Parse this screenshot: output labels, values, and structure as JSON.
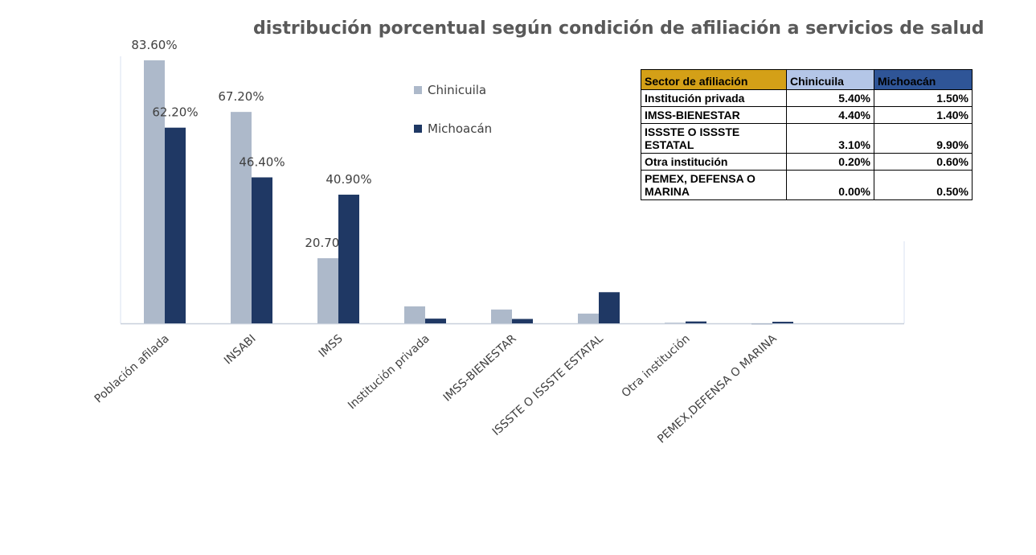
{
  "chart_data": {
    "type": "bar",
    "title": "distribución porcentual según condición de afiliación a servicios de salud",
    "categories": [
      "Población afilada",
      "INSABI",
      "IMSS",
      "Institución privada",
      "IMSS-BIENESTAR",
      "ISSSTE O ISSSTE ESTATAL",
      "Otra institución",
      "PEMEX,DEFENSA O MARINA"
    ],
    "series": [
      {
        "name": "Chinicuila",
        "color": "#adb9ca",
        "values": [
          83.6,
          67.2,
          20.7,
          5.4,
          4.4,
          3.1,
          0.2,
          0.0
        ],
        "value_labels": [
          "83.60%",
          "67.20%",
          "20.70%",
          null,
          null,
          null,
          null,
          null
        ]
      },
      {
        "name": "Michoacán",
        "color": "#1f3864",
        "values": [
          62.2,
          46.4,
          40.9,
          1.5,
          1.4,
          9.9,
          0.6,
          0.5
        ],
        "value_labels": [
          "62.20%",
          "46.40%",
          "40.90%",
          null,
          null,
          null,
          null,
          null
        ]
      }
    ],
    "ylim": [
      0,
      90
    ]
  },
  "table": {
    "header": [
      "Sector de afiliación",
      "Chinicuila",
      "Michoacán"
    ],
    "rows": [
      [
        "Institución privada",
        "5.40%",
        "1.50%"
      ],
      [
        "IMSS-BIENESTAR",
        "4.40%",
        "1.40%"
      ],
      [
        "ISSSTE O ISSSTE ESTATAL",
        "3.10%",
        "9.90%"
      ],
      [
        "Otra institución",
        "0.20%",
        "0.60%"
      ],
      [
        "PEMEX, DEFENSA O MARINA",
        "0.00%",
        "0.50%"
      ]
    ]
  }
}
